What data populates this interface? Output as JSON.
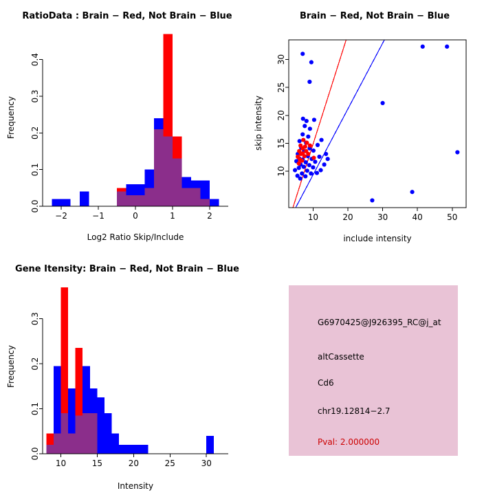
{
  "colors": {
    "red": "#FF0000",
    "blue": "#0000FF",
    "overlap": "#8B2E8B",
    "axis": "#000000",
    "info_fill": "#E9C3D6",
    "pval_color": "#CC0000"
  },
  "chart_data": [
    {
      "id": "ratio_histogram",
      "type": "bar",
      "title": "RatioData : Brain − Red, Not Brain − Blue",
      "xlabel": "Log2 Ratio Skip/Include",
      "ylabel": "Frequency",
      "xlim": [
        -2.5,
        2.5
      ],
      "ylim": [
        0,
        0.48
      ],
      "xtick_values": [
        -2,
        -1,
        0,
        1,
        2
      ],
      "xtick_labels": [
        "−2",
        "−1",
        "0",
        "1",
        "2"
      ],
      "ytick_values": [
        0,
        0.1,
        0.2,
        0.3,
        0.4
      ],
      "ytick_labels": [
        "0.0",
        "0.1",
        "0.2",
        "0.3",
        "0.4"
      ],
      "bin_width": 0.25,
      "legend": {
        "red": "Brain",
        "blue": "Not Brain"
      },
      "bins": [
        {
          "x": -2.25,
          "blue": 0.02,
          "red": 0
        },
        {
          "x": -2.0,
          "blue": 0.02,
          "red": 0
        },
        {
          "x": -1.75,
          "blue": 0,
          "red": 0
        },
        {
          "x": -1.5,
          "blue": 0.04,
          "red": 0
        },
        {
          "x": -1.25,
          "blue": 0,
          "red": 0
        },
        {
          "x": -1.0,
          "blue": 0,
          "red": 0
        },
        {
          "x": -0.75,
          "blue": 0,
          "red": 0
        },
        {
          "x": -0.5,
          "blue": 0.04,
          "red": 0.05
        },
        {
          "x": -0.25,
          "blue": 0.06,
          "red": 0.03
        },
        {
          "x": 0.0,
          "blue": 0.06,
          "red": 0.03
        },
        {
          "x": 0.25,
          "blue": 0.1,
          "red": 0.05
        },
        {
          "x": 0.5,
          "blue": 0.24,
          "red": 0.21
        },
        {
          "x": 0.75,
          "blue": 0.19,
          "red": 0.47
        },
        {
          "x": 1.0,
          "blue": 0.13,
          "red": 0.19
        },
        {
          "x": 1.25,
          "blue": 0.08,
          "red": 0.05
        },
        {
          "x": 1.5,
          "blue": 0.07,
          "red": 0.05
        },
        {
          "x": 1.75,
          "blue": 0.07,
          "red": 0.02
        },
        {
          "x": 2.0,
          "blue": 0.02,
          "red": 0
        }
      ]
    },
    {
      "id": "intensity_scatter",
      "type": "scatter",
      "title": "Brain − Red, Not Brain − Blue",
      "xlabel": "include intensity",
      "ylabel": "skip intensity",
      "xlim": [
        3,
        54
      ],
      "ylim": [
        3.5,
        33.5
      ],
      "xtick_values": [
        10,
        20,
        30,
        40,
        50
      ],
      "xtick_labels": [
        "10",
        "20",
        "30",
        "40",
        "50"
      ],
      "ytick_values": [
        10,
        15,
        20,
        25,
        30
      ],
      "ytick_labels": [
        "10",
        "15",
        "20",
        "25",
        "30"
      ],
      "legend": {
        "red": "Brain",
        "blue": "Not Brain"
      },
      "lines": [
        {
          "color": "red",
          "from": [
            4.2,
            3.5
          ],
          "to": [
            19.5,
            33.5
          ]
        },
        {
          "color": "blue",
          "from": [
            5.0,
            3.5
          ],
          "to": [
            30.5,
            33.5
          ]
        }
      ],
      "blue_points": [
        [
          7,
          31
        ],
        [
          9.5,
          29.5
        ],
        [
          9,
          26
        ],
        [
          41.5,
          32.3
        ],
        [
          48.5,
          32.3
        ],
        [
          30,
          22.2
        ],
        [
          51.5,
          13.4
        ],
        [
          38.5,
          6.3
        ],
        [
          27,
          4.8
        ],
        [
          4.8,
          10.2
        ],
        [
          5.2,
          11.8
        ],
        [
          5.5,
          9.2
        ],
        [
          5.6,
          13.1
        ],
        [
          5.9,
          10.6
        ],
        [
          6,
          12.3
        ],
        [
          6.1,
          15.4
        ],
        [
          6.3,
          8.7
        ],
        [
          6.4,
          11.2
        ],
        [
          6.6,
          14.2
        ],
        [
          6.8,
          9.6
        ],
        [
          7,
          12.1
        ],
        [
          7,
          16.6
        ],
        [
          7.1,
          19.4
        ],
        [
          7.3,
          10.8
        ],
        [
          7.4,
          13.6
        ],
        [
          7.6,
          18.1
        ],
        [
          7.8,
          9.1
        ],
        [
          7.9,
          11.6
        ],
        [
          8,
          15.1
        ],
        [
          8.1,
          19
        ],
        [
          8.3,
          10.1
        ],
        [
          8.5,
          12.7
        ],
        [
          8.6,
          16.2
        ],
        [
          8.9,
          11.1
        ],
        [
          9,
          14.1
        ],
        [
          9.1,
          17.6
        ],
        [
          9.4,
          9.6
        ],
        [
          9.6,
          12.2
        ],
        [
          10,
          10.7
        ],
        [
          10.1,
          13.7
        ],
        [
          10.3,
          19.2
        ],
        [
          10.6,
          11.7
        ],
        [
          11.1,
          9.7
        ],
        [
          11.3,
          14.7
        ],
        [
          11.8,
          12.6
        ],
        [
          12.2,
          10.2
        ],
        [
          12.4,
          15.6
        ],
        [
          13.2,
          11.2
        ],
        [
          13.7,
          13.1
        ],
        [
          14.2,
          12.2
        ]
      ],
      "red_points": [
        [
          5.6,
          12.6
        ],
        [
          5.9,
          11.4
        ],
        [
          6,
          13.6
        ],
        [
          6.2,
          12.1
        ],
        [
          6.4,
          14.6
        ],
        [
          6.5,
          13.1
        ],
        [
          6.8,
          11.9
        ],
        [
          7,
          13.2
        ],
        [
          7,
          14.1
        ],
        [
          7.2,
          15.6
        ],
        [
          7.5,
          12.7
        ],
        [
          7.7,
          14.4
        ],
        [
          8,
          13.6
        ],
        [
          8.2,
          15.1
        ],
        [
          8.6,
          13.1
        ],
        [
          9.1,
          14.6
        ],
        [
          10.2,
          12.4
        ]
      ]
    },
    {
      "id": "gene_intensity_histogram",
      "type": "bar",
      "title": "Gene Itensity: Brain − Red, Not Brain − Blue",
      "xlabel": "Intensity",
      "ylabel": "Frequency",
      "xlim": [
        7.5,
        33
      ],
      "ylim": [
        0,
        0.385
      ],
      "xtick_values": [
        10,
        15,
        20,
        25,
        30
      ],
      "xtick_labels": [
        "10",
        "15",
        "20",
        "25",
        "30"
      ],
      "ytick_values": [
        0,
        0.1,
        0.2,
        0.3
      ],
      "ytick_labels": [
        "0.0",
        "0.1",
        "0.2",
        "0.3"
      ],
      "bin_width": 1,
      "legend": {
        "red": "Brain",
        "blue": "Not Brain"
      },
      "bins": [
        {
          "x": 8,
          "blue": 0.02,
          "red": 0.045
        },
        {
          "x": 9,
          "blue": 0.195,
          "red": 0.045
        },
        {
          "x": 10,
          "blue": 0.09,
          "red": 0.37
        },
        {
          "x": 11,
          "blue": 0.145,
          "red": 0.045
        },
        {
          "x": 12,
          "blue": 0.085,
          "red": 0.235
        },
        {
          "x": 13,
          "blue": 0.195,
          "red": 0.09
        },
        {
          "x": 14,
          "blue": 0.145,
          "red": 0.09
        },
        {
          "x": 15,
          "blue": 0.125,
          "red": 0
        },
        {
          "x": 16,
          "blue": 0.09,
          "red": 0
        },
        {
          "x": 17,
          "blue": 0.045,
          "red": 0
        },
        {
          "x": 18,
          "blue": 0.02,
          "red": 0
        },
        {
          "x": 19,
          "blue": 0.02,
          "red": 0
        },
        {
          "x": 20,
          "blue": 0.02,
          "red": 0
        },
        {
          "x": 21,
          "blue": 0.02,
          "red": 0
        },
        {
          "x": 30,
          "blue": 0.04,
          "red": 0
        }
      ]
    }
  ],
  "info_box": {
    "lines": [
      "G6970425@J926395_RC@j_at",
      "altCassette",
      "Cd6",
      "chr19.12814−2.7"
    ],
    "pval": "Pval: 2.000000"
  }
}
